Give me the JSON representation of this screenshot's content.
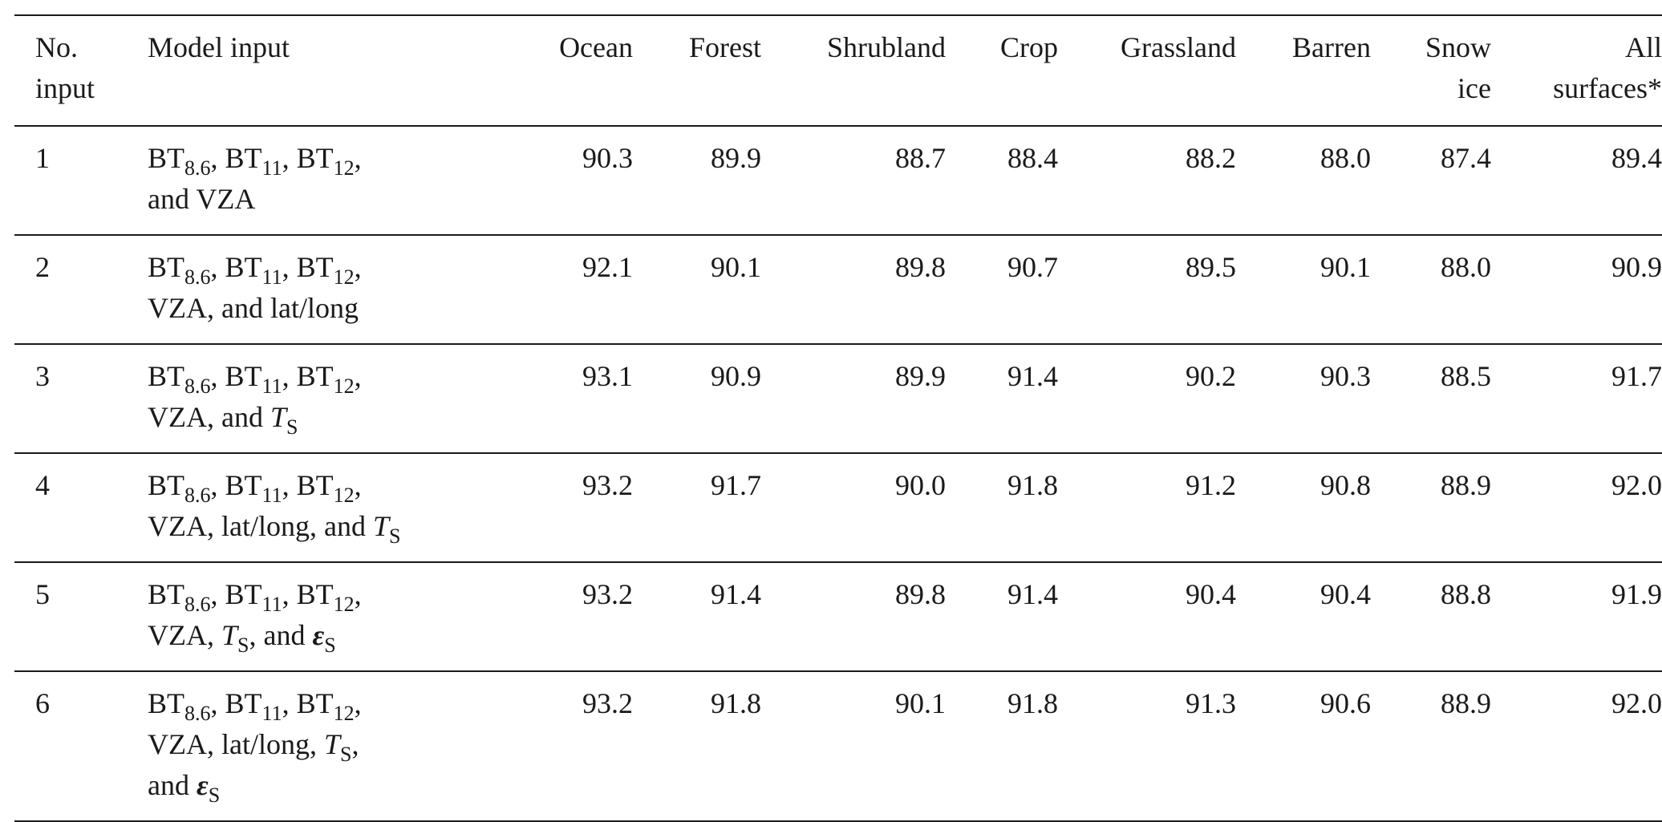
{
  "table": {
    "headers": [
      [
        "No.",
        "input"
      ],
      [
        "Model input"
      ],
      [
        "Ocean"
      ],
      [
        "Forest"
      ],
      [
        "Shrubland"
      ],
      [
        "Crop"
      ],
      [
        "Grassland"
      ],
      [
        "Barren"
      ],
      [
        "Snow",
        "ice"
      ],
      [
        "All",
        "surfaces*"
      ]
    ],
    "common": {
      "bt": "BT",
      "s86": "8.6",
      "s11": "11",
      "s12": "12",
      "sep": ", ",
      "sepc": ",",
      "vza": "VZA",
      "T": "T",
      "eps": "ε",
      "sub_s": "S"
    },
    "rows": [
      {
        "no": "1",
        "line2_text": "and VZA",
        "values": [
          "90.3",
          "89.9",
          "88.7",
          "88.4",
          "88.2",
          "88.0",
          "87.4",
          "89.4"
        ]
      },
      {
        "no": "2",
        "line2_text": "VZA, and lat/long",
        "values": [
          "92.1",
          "90.1",
          "89.8",
          "90.7",
          "89.5",
          "90.1",
          "88.0",
          "90.9"
        ]
      },
      {
        "no": "3",
        "line2_pre": "VZA, and ",
        "values": [
          "93.1",
          "90.9",
          "89.9",
          "91.4",
          "90.2",
          "90.3",
          "88.5",
          "91.7"
        ]
      },
      {
        "no": "4",
        "line2_pre": "VZA, lat/long, and ",
        "values": [
          "93.2",
          "91.7",
          "90.0",
          "91.8",
          "91.2",
          "90.8",
          "88.9",
          "92.0"
        ]
      },
      {
        "no": "5",
        "line2_pre": "VZA, ",
        "line2_mid": ", and ",
        "values": [
          "93.2",
          "91.4",
          "89.8",
          "91.4",
          "90.4",
          "90.4",
          "88.8",
          "91.9"
        ]
      },
      {
        "no": "6",
        "line2_pre": "VZA, lat/long, ",
        "line2_post": ",",
        "line3_pre": "and ",
        "values": [
          "93.2",
          "91.8",
          "90.1",
          "91.8",
          "91.3",
          "90.6",
          "88.9",
          "92.0"
        ]
      }
    ]
  }
}
